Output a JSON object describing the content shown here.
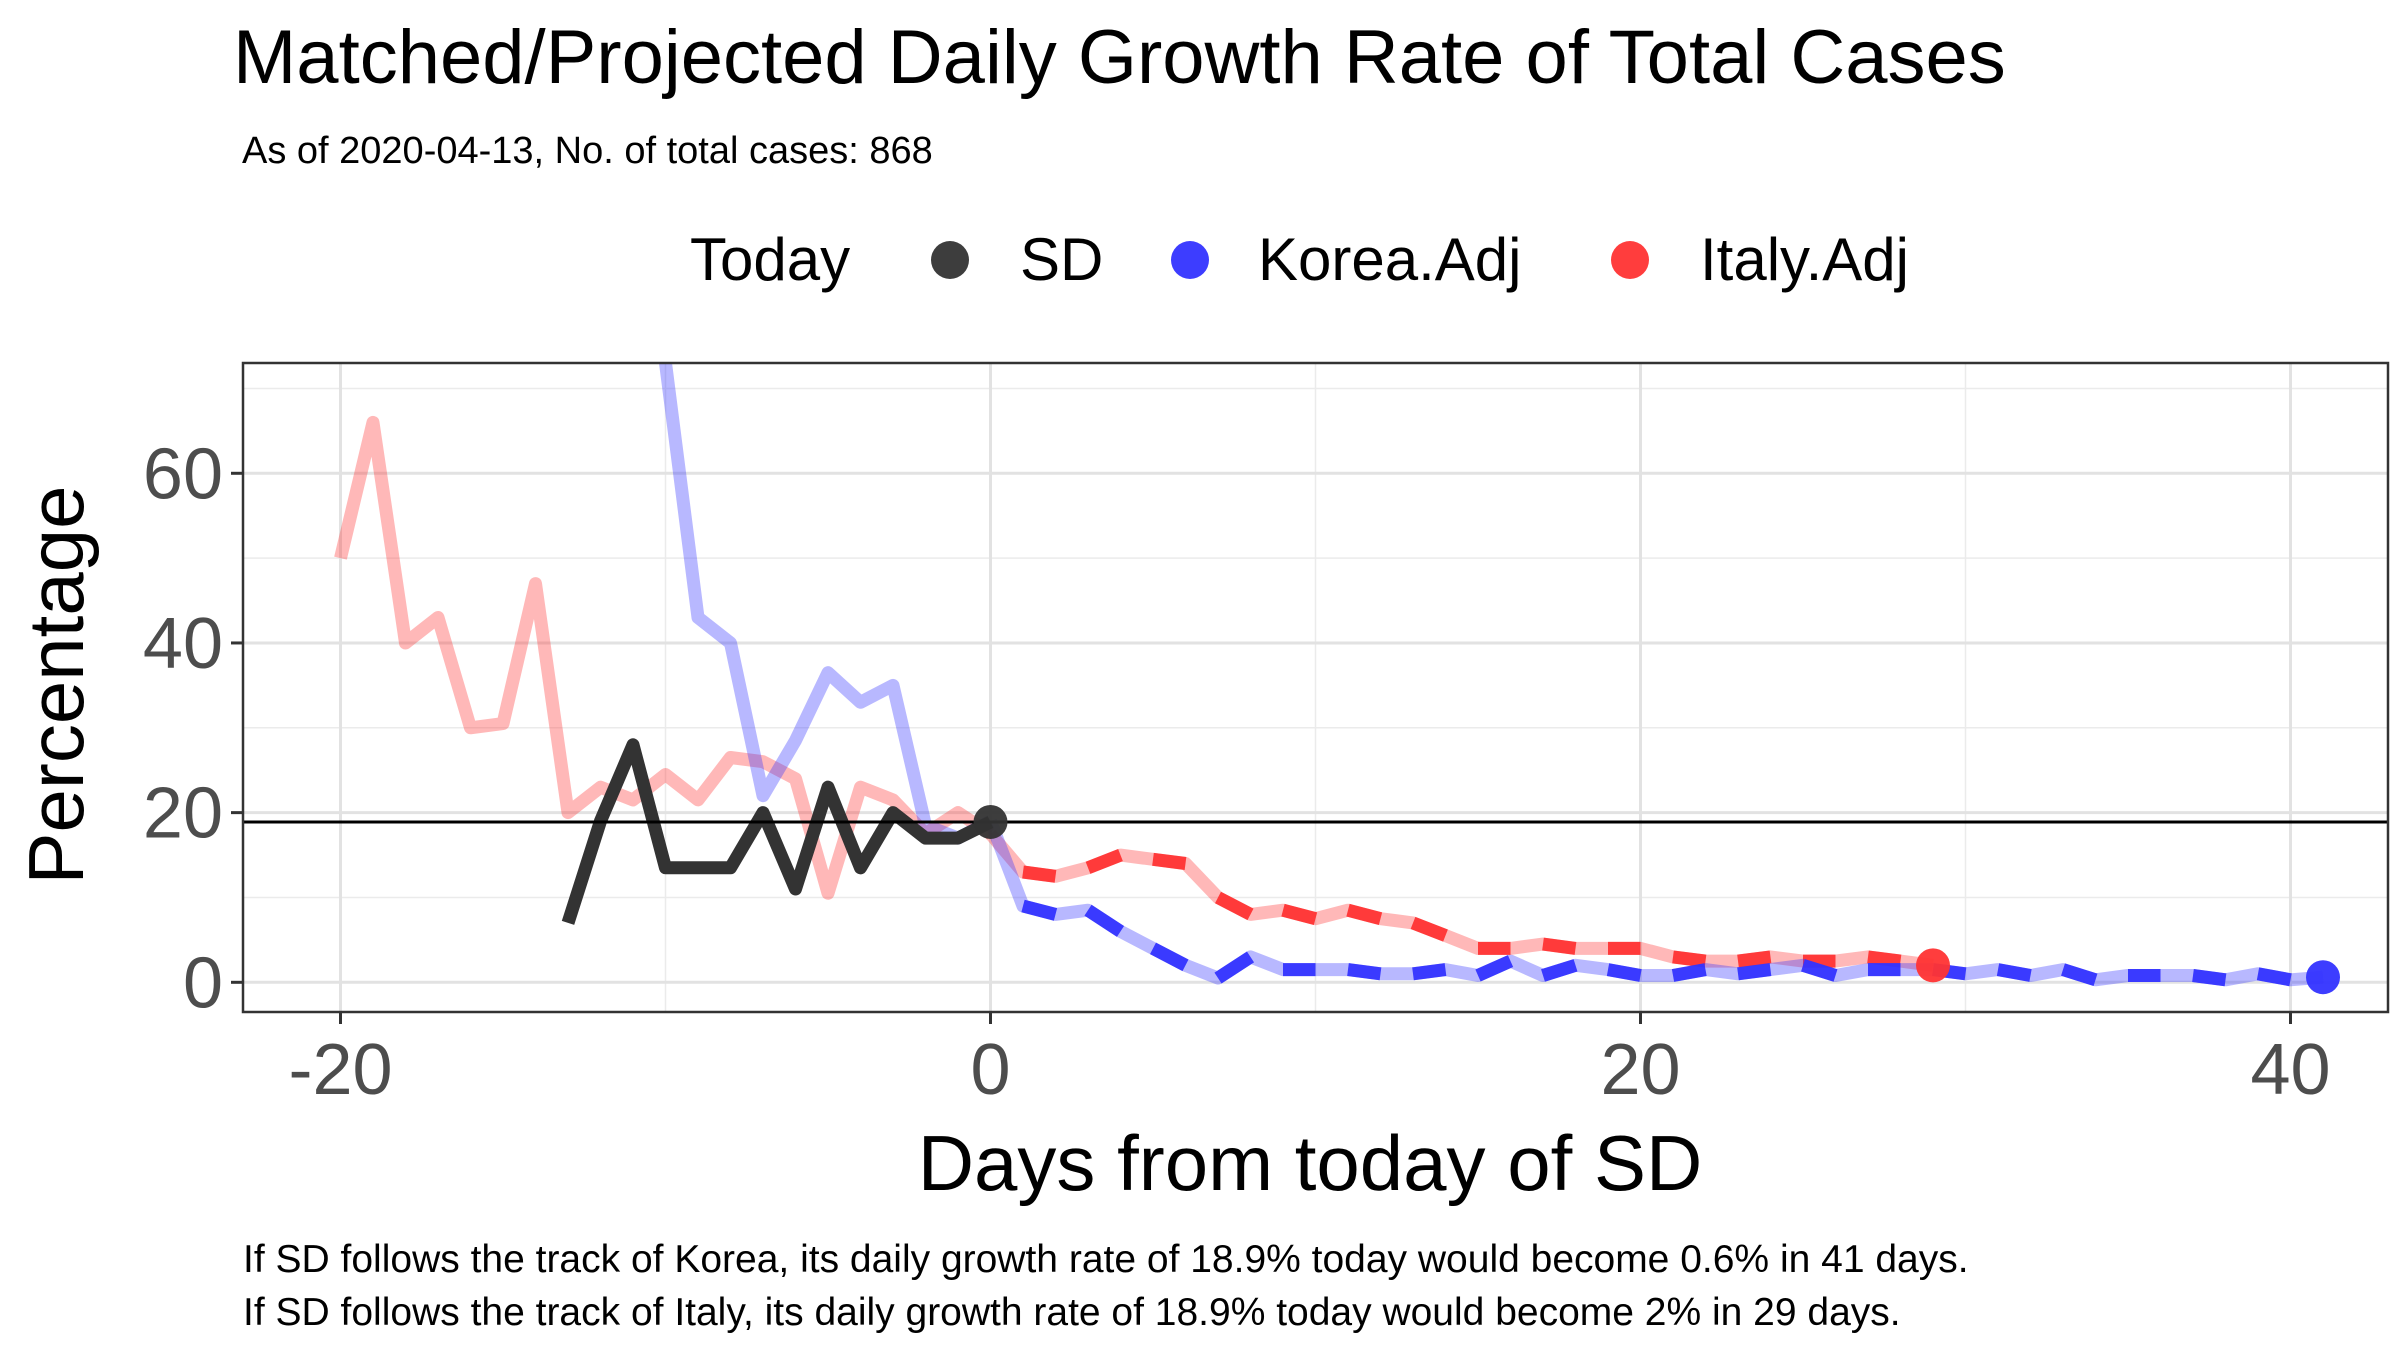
{
  "chart_data": {
    "type": "line",
    "title": "Matched/Projected Daily Growth Rate of Total Cases",
    "subtitle": "As of 2020-04-13, No. of total cases: 868",
    "xlabel": "Days from today of SD",
    "ylabel": "Percentage",
    "xlim": [
      -23,
      43
    ],
    "ylim": [
      -3.5,
      73
    ],
    "x_ticks": [
      -20,
      0,
      20,
      40
    ],
    "y_ticks": [
      0,
      20,
      40,
      60
    ],
    "x_tick_labels": [
      "-20",
      "0",
      "20",
      "40"
    ],
    "y_tick_labels": [
      "0",
      "20",
      "40",
      "60"
    ],
    "grid": true,
    "legend": {
      "position": "top",
      "title": "Today",
      "entries": [
        {
          "label": "SD",
          "color": "#333333"
        },
        {
          "label": "Korea.Adj",
          "color": "#3333FF"
        },
        {
          "label": "Italy.Adj",
          "color": "#FF3333"
        }
      ]
    },
    "hline": {
      "y": 18.9,
      "color": "#000000"
    },
    "series": [
      {
        "name": "Italy.Adj",
        "color": "#FF3333",
        "matched_x": [
          -20,
          -19,
          -18,
          -17,
          -16,
          -15,
          -14,
          -13,
          -12,
          -11,
          -10,
          -9,
          -8,
          -7,
          -6,
          -5,
          -4,
          -3,
          -2,
          -1,
          0
        ],
        "matched_y": [
          50,
          66,
          40,
          43,
          30,
          30.5,
          47,
          20,
          23,
          21.5,
          24.5,
          21.5,
          26.5,
          26,
          24,
          10.5,
          23,
          21.5,
          17.5,
          20,
          17.5
        ],
        "projected_x": [
          0,
          1,
          2,
          3,
          4,
          5,
          6,
          7,
          8,
          9,
          10,
          11,
          12,
          13,
          14,
          15,
          16,
          17,
          18,
          19,
          20,
          21,
          22,
          23,
          24,
          25,
          26,
          27,
          28,
          29
        ],
        "projected_y": [
          17.5,
          13,
          12.5,
          13.5,
          15,
          14.5,
          14,
          10,
          8,
          8.5,
          7.5,
          8.5,
          7.5,
          7,
          5.5,
          4,
          4,
          4.5,
          4,
          4,
          4,
          3,
          2.5,
          2.5,
          3,
          2.5,
          2.5,
          3,
          2.5,
          2
        ]
      },
      {
        "name": "Korea.Adj",
        "color": "#3333FF",
        "matched_x": [
          -10,
          -9,
          -8,
          -7,
          -6,
          -5,
          -4,
          -3,
          -2,
          -1,
          0
        ],
        "matched_y": [
          73,
          43,
          40,
          22,
          28.5,
          36.5,
          33,
          35,
          18.5,
          17,
          19
        ],
        "projected_x": [
          0,
          1,
          2,
          3,
          4,
          5,
          6,
          7,
          8,
          9,
          10,
          11,
          12,
          13,
          14,
          15,
          16,
          17,
          18,
          19,
          20,
          21,
          22,
          23,
          24,
          25,
          26,
          27,
          28,
          29,
          30,
          31,
          32,
          33,
          34,
          35,
          36,
          37,
          38,
          39,
          40,
          41
        ],
        "projected_y": [
          19,
          9,
          8,
          8.5,
          6,
          4,
          2,
          0.5,
          3,
          1.5,
          1.5,
          1.5,
          1,
          1,
          1.5,
          0.8,
          2.5,
          0.8,
          2,
          1.5,
          0.8,
          0.8,
          1.5,
          1,
          1.5,
          2,
          0.8,
          1.5,
          1.5,
          1.5,
          1,
          1.5,
          0.8,
          1.5,
          0.3,
          0.8,
          0.8,
          0.8,
          0.3,
          1,
          0.3,
          0.6
        ]
      },
      {
        "name": "SD",
        "color": "#333333",
        "x": [
          -13,
          -12,
          -11,
          -10,
          -9,
          -8,
          -7,
          -6,
          -5,
          -4,
          -3,
          -2,
          -1,
          0
        ],
        "y": [
          7,
          19,
          28,
          13.5,
          13.5,
          13.5,
          20,
          11,
          23,
          13.5,
          20,
          17,
          17,
          18.9
        ]
      }
    ],
    "today_points": [
      {
        "series": "SD",
        "x": 0,
        "y": 18.9
      },
      {
        "series": "Korea.Adj",
        "x": 41,
        "y": 0.6
      },
      {
        "series": "Italy.Adj",
        "x": 29,
        "y": 2
      }
    ],
    "caption": [
      "If SD follows the track of Korea, its daily growth rate of 18.9% today would become 0.6% in 41 days.",
      "If SD follows the track of Italy, its daily growth rate of 18.9% today would become 2% in 29 days."
    ]
  }
}
